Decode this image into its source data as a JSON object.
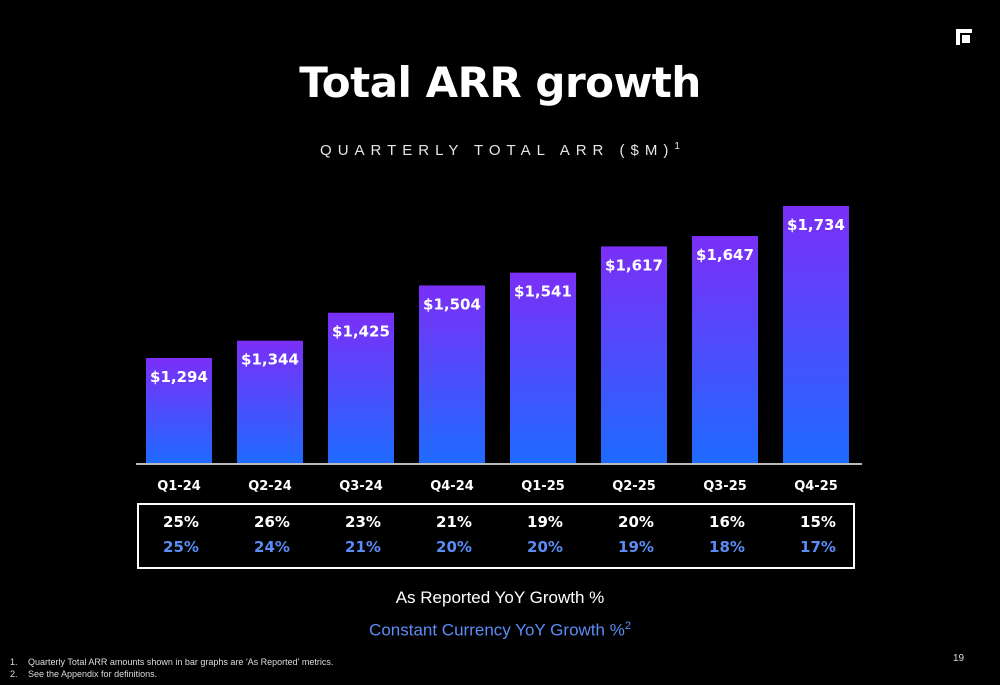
{
  "title": "Total ARR growth",
  "subtitle": "QUARTERLY TOTAL ARR ($M)",
  "subtitle_sup": "1",
  "chart_data": {
    "type": "bar",
    "categories": [
      "Q1-24",
      "Q2-24",
      "Q3-24",
      "Q4-24",
      "Q1-25",
      "Q2-25",
      "Q3-25",
      "Q4-25"
    ],
    "values": [
      1294,
      1344,
      1425,
      1504,
      1541,
      1617,
      1647,
      1734
    ],
    "value_labels": [
      "$1,294",
      "$1,344",
      "$1,425",
      "$1,504",
      "$1,541",
      "$1,617",
      "$1,647",
      "$1,734"
    ],
    "ylabel": "",
    "xlabel": "",
    "grid": false,
    "bar_gradient": {
      "top": "#7b2ff7",
      "bottom": "#1e6bff"
    }
  },
  "growth_table": {
    "reported": [
      "25%",
      "26%",
      "23%",
      "21%",
      "19%",
      "20%",
      "16%",
      "15%"
    ],
    "constant_currency": [
      "25%",
      "24%",
      "21%",
      "20%",
      "20%",
      "19%",
      "18%",
      "17%"
    ]
  },
  "legend": {
    "reported": "As Reported YoY Growth %",
    "constant_currency": "Constant Currency YoY Growth %",
    "constant_currency_sup": "2",
    "reported_color": "#ffffff",
    "constant_currency_color": "#5b8cf5"
  },
  "footnotes": [
    {
      "num": "1.",
      "text": "Quarterly Total ARR amounts shown in bar graphs are 'As Reported' metrics."
    },
    {
      "num": "2.",
      "text": "See the Appendix for definitions."
    }
  ],
  "page_number": "19",
  "logo_icon": "cube-logo-icon"
}
